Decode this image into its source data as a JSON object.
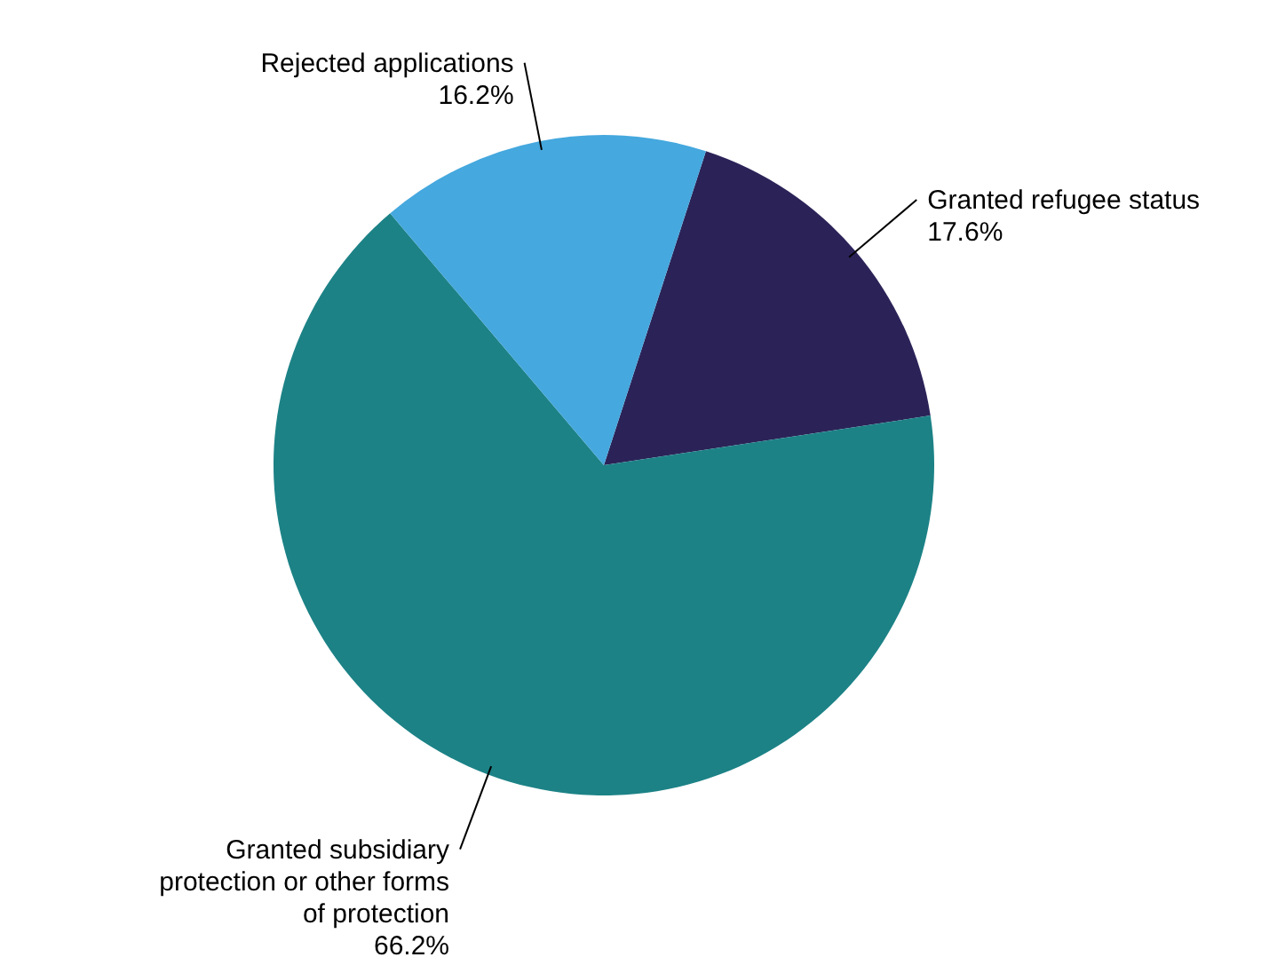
{
  "chart_data": {
    "type": "pie",
    "categories": [
      "Granted refugee status",
      "Granted subsidiary protection or other forms of protection",
      "Rejected applications"
    ],
    "values": [
      17.6,
      66.2,
      16.2
    ],
    "value_labels": [
      "17.6%",
      "66.2%",
      "16.2%"
    ],
    "colors": [
      "#2b2358",
      "#1c8286",
      "#45a8de"
    ]
  }
}
